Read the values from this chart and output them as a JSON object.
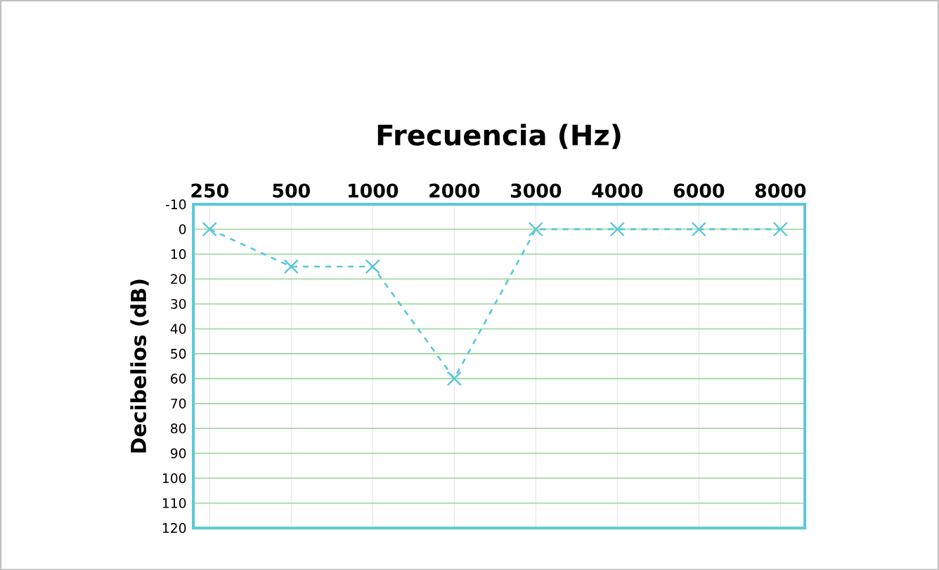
{
  "chart_data": {
    "type": "line",
    "xlabel": "Frecuencia (Hz)",
    "ylabel": "Decibelios (dB)",
    "categories": [
      "250",
      "500",
      "1000",
      "2000",
      "3000",
      "4000",
      "6000",
      "8000"
    ],
    "series": [
      {
        "color": "#5bc8d8",
        "values": [
          0,
          15,
          15,
          60,
          0,
          0,
          0,
          0
        ]
      }
    ],
    "ylim": [
      120,
      -10
    ],
    "yticks": [
      -10,
      0,
      10,
      20,
      30,
      40,
      50,
      60,
      70,
      80,
      90,
      100,
      110,
      120
    ],
    "grid": true,
    "marker": "cross",
    "line_style": "dashed"
  }
}
